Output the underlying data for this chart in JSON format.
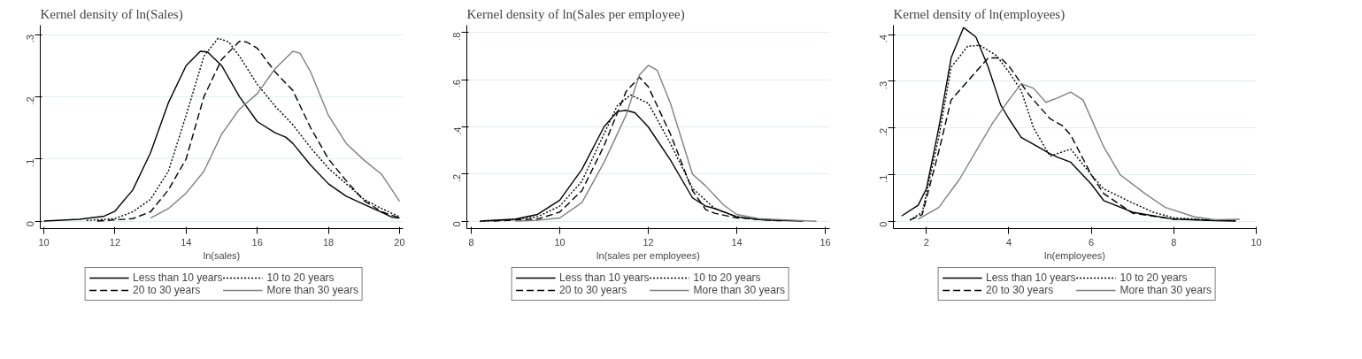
{
  "chart_data": [
    {
      "type": "line",
      "title": "Kernel density of ln(Sales)",
      "xlabel": "ln(sales)",
      "xlim": [
        9.9,
        20.1
      ],
      "xticks": [
        10,
        12,
        14,
        16,
        18,
        20
      ],
      "ylim": [
        -0.012,
        0.315
      ],
      "yticks": [
        {
          "value": 0,
          "label": "0"
        },
        {
          "value": 0.1,
          "label": ".1"
        },
        {
          "value": 0.2,
          "label": ".2"
        },
        {
          "value": 0.3,
          "label": ".3"
        }
      ],
      "grid": "y",
      "legend": "bottom",
      "series": [
        {
          "name": "Less than 10 years",
          "color": "#000000",
          "line_style": "solid",
          "x": [
            10,
            11,
            11.7,
            12,
            12.5,
            13,
            13.5,
            14,
            14.4,
            14.6,
            15,
            15.5,
            16,
            16.5,
            16.8,
            17,
            17.5,
            18,
            18.5,
            19,
            19.5,
            19.8,
            20
          ],
          "values": [
            0,
            0.003,
            0.008,
            0.016,
            0.05,
            0.11,
            0.19,
            0.25,
            0.273,
            0.272,
            0.25,
            0.2,
            0.16,
            0.142,
            0.135,
            0.125,
            0.09,
            0.06,
            0.04,
            0.027,
            0.014,
            0.006,
            0.005
          ]
        },
        {
          "name": "10 to 20 years",
          "color": "#000000",
          "line_style": "dotted",
          "x": [
            11.2,
            12,
            12.5,
            13,
            13.5,
            14,
            14.5,
            14.9,
            15.2,
            15.5,
            16,
            16.5,
            17,
            17.5,
            18,
            18.5,
            19,
            19.5,
            20
          ],
          "values": [
            0.001,
            0.004,
            0.015,
            0.035,
            0.08,
            0.17,
            0.265,
            0.294,
            0.288,
            0.265,
            0.22,
            0.185,
            0.155,
            0.118,
            0.085,
            0.06,
            0.035,
            0.02,
            0.007
          ]
        },
        {
          "name": "20 to 30 years",
          "color": "#000000",
          "line_style": "dashed",
          "x": [
            11.5,
            12.5,
            13,
            13.5,
            14,
            14.5,
            15,
            15.5,
            15.7,
            16,
            16.5,
            17,
            17.5,
            18,
            18.5,
            19,
            19.5,
            20
          ],
          "values": [
            0,
            0.004,
            0.015,
            0.05,
            0.1,
            0.2,
            0.26,
            0.289,
            0.288,
            0.278,
            0.24,
            0.21,
            0.15,
            0.1,
            0.065,
            0.033,
            0.015,
            0.005
          ]
        },
        {
          "name": "More than 30 years",
          "color": "#808080",
          "line_style": "solid",
          "x": [
            13,
            13.5,
            14,
            14.5,
            15,
            15.5,
            16,
            16.5,
            17,
            17.2,
            17.5,
            18,
            18.5,
            19,
            19.5,
            20
          ],
          "values": [
            0.005,
            0.02,
            0.045,
            0.08,
            0.14,
            0.18,
            0.205,
            0.245,
            0.273,
            0.27,
            0.24,
            0.17,
            0.125,
            0.098,
            0.075,
            0.032
          ]
        }
      ]
    },
    {
      "type": "line",
      "title": "Kernel density of ln(Sales per employee)",
      "xlabel": "ln(sales per employees)",
      "xlim": [
        7.9,
        16.1
      ],
      "xticks": [
        8,
        10,
        12,
        14,
        16
      ],
      "ylim": [
        -0.03,
        0.83
      ],
      "yticks": [
        {
          "value": 0,
          "label": "0"
        },
        {
          "value": 0.2,
          "label": ".2"
        },
        {
          "value": 0.4,
          "label": ".4"
        },
        {
          "value": 0.6,
          "label": ".6"
        },
        {
          "value": 0.8,
          "label": ".8"
        }
      ],
      "grid": "y",
      "legend": "bottom",
      "series": [
        {
          "name": "Less than 10 years",
          "color": "#000000",
          "line_style": "solid",
          "x": [
            8.2,
            9,
            9.5,
            10,
            10.5,
            11,
            11.3,
            11.5,
            11.7,
            12,
            12.5,
            13,
            13.3,
            13.5,
            14,
            14.5,
            15,
            15.5
          ],
          "values": [
            0.002,
            0.01,
            0.03,
            0.09,
            0.22,
            0.4,
            0.465,
            0.47,
            0.46,
            0.4,
            0.26,
            0.1,
            0.065,
            0.055,
            0.02,
            0.008,
            0.004,
            0.002
          ]
        },
        {
          "name": "10 to 20 years",
          "color": "#000000",
          "line_style": "dotted",
          "x": [
            8.2,
            9,
            9.5,
            10,
            10.5,
            11,
            11.3,
            11.6,
            12,
            12.5,
            13,
            13.5,
            14,
            14.5,
            15
          ],
          "values": [
            0,
            0.008,
            0.02,
            0.065,
            0.17,
            0.37,
            0.49,
            0.535,
            0.5,
            0.33,
            0.14,
            0.055,
            0.02,
            0.008,
            0.003
          ]
        },
        {
          "name": "20 to 30 years",
          "color": "#000000",
          "line_style": "dashed",
          "x": [
            8.5,
            9.5,
            10,
            10.5,
            11,
            11.5,
            11.8,
            12,
            12.5,
            13,
            13.3,
            13.5,
            14,
            15
          ],
          "values": [
            0.002,
            0.01,
            0.04,
            0.13,
            0.32,
            0.55,
            0.61,
            0.57,
            0.37,
            0.13,
            0.05,
            0.035,
            0.015,
            0.003
          ]
        },
        {
          "name": "More than 30 years",
          "color": "#808080",
          "line_style": "solid",
          "x": [
            9,
            9.5,
            10,
            10.5,
            11,
            11.5,
            11.8,
            12,
            12.2,
            12.5,
            13,
            13.3,
            13.7,
            14,
            14.5,
            15.3,
            15.8
          ],
          "values": [
            0.002,
            0.005,
            0.015,
            0.08,
            0.25,
            0.45,
            0.62,
            0.66,
            0.64,
            0.5,
            0.2,
            0.15,
            0.07,
            0.03,
            0.012,
            0.005,
            0.001
          ]
        }
      ]
    },
    {
      "type": "line",
      "title": "Kernel density of ln(employees)",
      "xlabel": "ln(employees)",
      "xlim": [
        1.2,
        10
      ],
      "xticks": [
        2,
        4,
        6,
        8,
        10
      ],
      "ylim": [
        -0.015,
        0.42
      ],
      "yticks": [
        {
          "value": 0,
          "label": "0"
        },
        {
          "value": 0.1,
          "label": ".1"
        },
        {
          "value": 0.2,
          "label": ".2"
        },
        {
          "value": 0.3,
          "label": ".3"
        },
        {
          "value": 0.4,
          "label": ".4"
        }
      ],
      "grid": "y",
      "legend": "bottom",
      "series": [
        {
          "name": "Less than 10 years",
          "color": "#000000",
          "line_style": "solid",
          "x": [
            1.4,
            1.8,
            2,
            2.3,
            2.6,
            2.9,
            3.2,
            3.5,
            3.8,
            4,
            4.3,
            4.7,
            5,
            5.2,
            5.5,
            6,
            6.3,
            7,
            8,
            9,
            9.5
          ],
          "values": [
            0.012,
            0.035,
            0.07,
            0.2,
            0.35,
            0.415,
            0.395,
            0.33,
            0.25,
            0.22,
            0.18,
            0.16,
            0.145,
            0.137,
            0.127,
            0.08,
            0.045,
            0.02,
            0.005,
            0.002,
            0.001
          ]
        },
        {
          "name": "10 to 20 years",
          "color": "#000000",
          "line_style": "dotted",
          "x": [
            1.6,
            1.9,
            2.3,
            2.6,
            3,
            3.3,
            3.7,
            4,
            4.3,
            4.6,
            5,
            5.5,
            6,
            6.3,
            7,
            7.5,
            8,
            9,
            9.5
          ],
          "values": [
            0.003,
            0.02,
            0.18,
            0.33,
            0.375,
            0.377,
            0.355,
            0.32,
            0.28,
            0.2,
            0.14,
            0.155,
            0.1,
            0.07,
            0.04,
            0.02,
            0.008,
            0.003,
            0.002
          ]
        },
        {
          "name": "20 to 30 years",
          "color": "#000000",
          "line_style": "dashed",
          "x": [
            1.6,
            1.9,
            2.3,
            2.6,
            3,
            3.5,
            3.8,
            4,
            4.5,
            5,
            5.3,
            5.5,
            6,
            6.3,
            7,
            8,
            9,
            9.5
          ],
          "values": [
            0.003,
            0.015,
            0.15,
            0.26,
            0.3,
            0.35,
            0.35,
            0.333,
            0.27,
            0.22,
            0.205,
            0.185,
            0.1,
            0.06,
            0.018,
            0.005,
            0.003,
            0.002
          ]
        },
        {
          "name": "More than 30 years",
          "color": "#808080",
          "line_style": "solid",
          "x": [
            1.8,
            2.3,
            2.8,
            3.2,
            3.6,
            4,
            4.3,
            4.6,
            4.9,
            5.2,
            5.5,
            5.8,
            6.3,
            6.7,
            7.3,
            7.8,
            8.5,
            9,
            9.6
          ],
          "values": [
            0.005,
            0.03,
            0.09,
            0.15,
            0.21,
            0.26,
            0.295,
            0.285,
            0.255,
            0.265,
            0.277,
            0.26,
            0.16,
            0.1,
            0.06,
            0.03,
            0.01,
            0.004,
            0.005
          ]
        }
      ]
    }
  ]
}
